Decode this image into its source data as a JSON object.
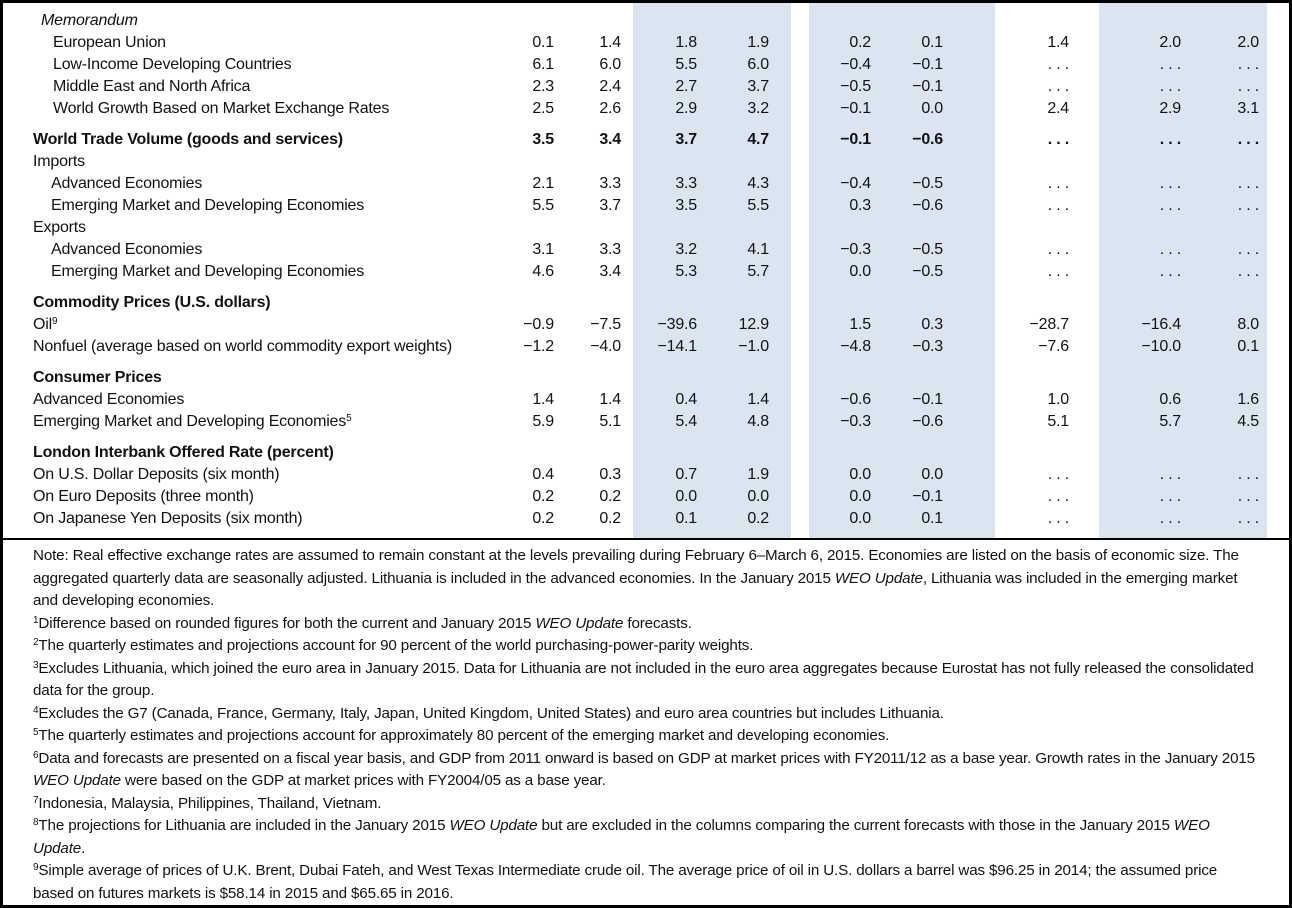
{
  "colors": {
    "highlight_band": "#dbe5f1"
  },
  "table": {
    "num_value_columns": 9,
    "ellipsis": ". . .",
    "rows": [
      {
        "label": "Memorandum",
        "style": "memhead",
        "values": []
      },
      {
        "label": "European Union",
        "style": "memitem",
        "values": [
          "0.1",
          "1.4",
          "1.8",
          "1.9",
          "0.2",
          "0.1",
          "1.4",
          "2.0",
          "2.0"
        ]
      },
      {
        "label": "Low-Income Developing Countries",
        "style": "memitem",
        "values": [
          "6.1",
          "6.0",
          "5.5",
          "6.0",
          "−0.4",
          "−0.1",
          ". . .",
          ". . .",
          ". . ."
        ]
      },
      {
        "label": "Middle East and North Africa",
        "style": "memitem",
        "values": [
          "2.3",
          "2.4",
          "2.7",
          "3.7",
          "−0.5",
          "−0.1",
          ". . .",
          ". . .",
          ". . ."
        ]
      },
      {
        "label": "World Growth Based on Market Exchange Rates",
        "style": "memitem",
        "values": [
          "2.5",
          "2.6",
          "2.9",
          "3.2",
          "−0.1",
          "0.0",
          "2.4",
          "2.9",
          "3.1"
        ]
      },
      {
        "label": "World Trade Volume (goods and services)",
        "style": "bold",
        "gap": true,
        "values": [
          "3.5",
          "3.4",
          "3.7",
          "4.7",
          "−0.1",
          "−0.6",
          ". . .",
          ". . .",
          ". . ."
        ]
      },
      {
        "label": "Imports",
        "style": "plain",
        "values": []
      },
      {
        "label": "Advanced Economies",
        "style": "indent",
        "values": [
          "2.1",
          "3.3",
          "3.3",
          "4.3",
          "−0.4",
          "−0.5",
          ". . .",
          ". . .",
          ". . ."
        ]
      },
      {
        "label": "Emerging Market and Developing Economies",
        "style": "indent",
        "values": [
          "5.5",
          "3.7",
          "3.5",
          "5.5",
          "0.3",
          "−0.6",
          ". . .",
          ". . .",
          ". . ."
        ]
      },
      {
        "label": "Exports",
        "style": "plain",
        "values": []
      },
      {
        "label": "Advanced Economies",
        "style": "indent",
        "values": [
          "3.1",
          "3.3",
          "3.2",
          "4.1",
          "−0.3",
          "−0.5",
          ". . .",
          ". . .",
          ". . ."
        ]
      },
      {
        "label": "Emerging Market and Developing Economies",
        "style": "indent",
        "values": [
          "4.6",
          "3.4",
          "5.3",
          "5.7",
          "0.0",
          "−0.5",
          ". . .",
          ". . .",
          ". . ."
        ]
      },
      {
        "label": "Commodity Prices (U.S. dollars)",
        "style": "bold",
        "gap": true,
        "values": []
      },
      {
        "label": "Oil",
        "sup": "9",
        "style": "plain",
        "values": [
          "−0.9",
          "−7.5",
          "−39.6",
          "12.9",
          "1.5",
          "0.3",
          "−28.7",
          "−16.4",
          "8.0"
        ]
      },
      {
        "label": "Nonfuel (average based on world commodity export weights)",
        "style": "plain",
        "values": [
          "−1.2",
          "−4.0",
          "−14.1",
          "−1.0",
          "−4.8",
          "−0.3",
          "−7.6",
          "−10.0",
          "0.1"
        ]
      },
      {
        "label": "Consumer Prices",
        "style": "bold",
        "gap": true,
        "values": []
      },
      {
        "label": "Advanced Economies",
        "style": "plain",
        "values": [
          "1.4",
          "1.4",
          "0.4",
          "1.4",
          "−0.6",
          "−0.1",
          "1.0",
          "0.6",
          "1.6"
        ]
      },
      {
        "label": "Emerging Market and Developing Economies",
        "sup": "5",
        "style": "plain",
        "values": [
          "5.9",
          "5.1",
          "5.4",
          "4.8",
          "−0.3",
          "−0.6",
          "5.1",
          "5.7",
          "4.5"
        ]
      },
      {
        "label": "London Interbank Offered Rate (percent)",
        "style": "bold",
        "gap": true,
        "values": []
      },
      {
        "label": "On U.S. Dollar Deposits (six month)",
        "style": "plain",
        "values": [
          "0.4",
          "0.3",
          "0.7",
          "1.9",
          "0.0",
          "0.0",
          ". . .",
          ". . .",
          ". . ."
        ]
      },
      {
        "label": "On Euro Deposits (three month)",
        "style": "plain",
        "values": [
          "0.2",
          "0.2",
          "0.0",
          "0.0",
          "0.0",
          "−0.1",
          ". . .",
          ". . .",
          ". . ."
        ]
      },
      {
        "label": "On Japanese Yen Deposits (six month)",
        "style": "plain",
        "values": [
          "0.2",
          "0.2",
          "0.1",
          "0.2",
          "0.0",
          "0.1",
          ". . .",
          ". . .",
          ". . ."
        ]
      }
    ]
  },
  "notes": {
    "note": {
      "segments": [
        {
          "t": "Note: Real effective exchange rates are assumed to remain constant at the levels prevailing during February 6–March 6, 2015. Economies are listed on the basis of economic size. The aggregated quarterly data are seasonally adjusted. Lithuania is included in the advanced economies. In the January 2015 "
        },
        {
          "t": "WEO Update",
          "i": true
        },
        {
          "t": ", Lithuania was included in the emerging market and developing economies."
        }
      ]
    },
    "footnotes": [
      {
        "sup": "1",
        "segments": [
          {
            "t": "Difference based on rounded figures for both the current and January 2015 "
          },
          {
            "t": "WEO Update",
            "i": true
          },
          {
            "t": " forecasts."
          }
        ]
      },
      {
        "sup": "2",
        "segments": [
          {
            "t": "The quarterly estimates and projections account for 90 percent of the world purchasing-power-parity weights."
          }
        ]
      },
      {
        "sup": "3",
        "segments": [
          {
            "t": "Excludes Lithuania, which joined the euro area in January 2015. Data for Lithuania are not included in the euro area aggregates because Eurostat has not fully released the consolidated data for the group."
          }
        ]
      },
      {
        "sup": "4",
        "segments": [
          {
            "t": "Excludes the G7 (Canada, France, Germany, Italy, Japan, United Kingdom, United States) and euro area countries but includes Lithuania."
          }
        ]
      },
      {
        "sup": "5",
        "segments": [
          {
            "t": "The quarterly estimates and projections account for approximately 80 percent of the emerging market and developing economies."
          }
        ]
      },
      {
        "sup": "6",
        "segments": [
          {
            "t": "Data and forecasts are presented on a fiscal year basis, and GDP from 2011 onward is based on GDP at market prices with FY2011/12 as a base year. Growth rates in the January 2015 "
          },
          {
            "t": "WEO Update",
            "i": true
          },
          {
            "t": " were based on the GDP at market prices with FY2004/05 as a base year."
          }
        ]
      },
      {
        "sup": "7",
        "segments": [
          {
            "t": "Indonesia, Malaysia, Philippines, Thailand, Vietnam."
          }
        ]
      },
      {
        "sup": "8",
        "segments": [
          {
            "t": "The projections for Lithuania are included in the January 2015 "
          },
          {
            "t": "WEO Update",
            "i": true
          },
          {
            "t": " but are excluded in the columns comparing the current forecasts with those in the January 2015 "
          },
          {
            "t": "WEO Update",
            "i": true
          },
          {
            "t": "."
          }
        ]
      },
      {
        "sup": "9",
        "segments": [
          {
            "t": "Simple average of prices of U.K. Brent, Dubai Fateh, and West Texas Intermediate crude oil. The average price of oil in U.S. dollars a barrel was $96.25 in 2014; the assumed price based on futures markets is $58.14 in 2015 and $65.65 in 2016."
          }
        ]
      }
    ]
  }
}
